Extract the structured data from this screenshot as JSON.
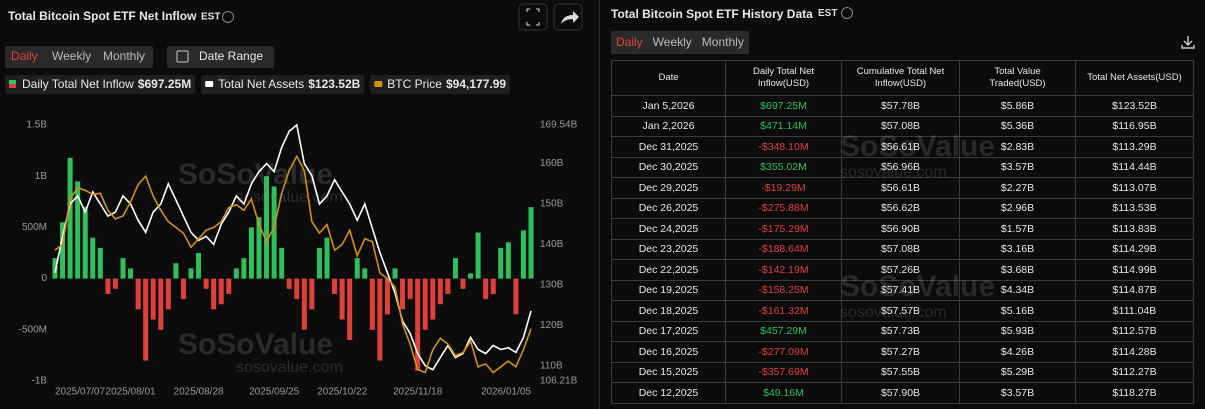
{
  "chart_data": {
    "type": "bar",
    "title": "Total Bitcoin Spot ETF Net Inflow",
    "timezone": "EST",
    "tabs": [
      "Daily",
      "Weekly",
      "Monthly"
    ],
    "date_range": "Date Range",
    "watermark": {
      "brand": "SoSoValue",
      "site": "sosovalue.com"
    },
    "categories": [
      "2025/07/07",
      null,
      null,
      null,
      null,
      null,
      null,
      null,
      null,
      null,
      "2025/08/01",
      null,
      null,
      null,
      null,
      null,
      null,
      null,
      null,
      "2025/08/28",
      null,
      null,
      null,
      null,
      null,
      null,
      null,
      null,
      null,
      "2025/09/25",
      null,
      null,
      null,
      null,
      null,
      null,
      null,
      null,
      "2025/10/22",
      null,
      null,
      null,
      null,
      null,
      null,
      null,
      null,
      null,
      "2025/11/18",
      null,
      null,
      null,
      null,
      null,
      null,
      null,
      null,
      null,
      null,
      null,
      null,
      null,
      null,
      "2026/01/05"
    ],
    "series": [
      {
        "name": "Daily Total Net Inflow",
        "type": "bar",
        "color": "#2fbf5b",
        "negative_color": "#e0403a",
        "value_label": "$697.25M",
        "values": [
          200,
          550,
          1180,
          950,
          700,
          400,
          300,
          -150,
          -100,
          200,
          100,
          -300,
          -800,
          -400,
          -500,
          -300,
          150,
          -200,
          100,
          250,
          -100,
          -300,
          -250,
          -150,
          100,
          200,
          500,
          600,
          1000,
          900,
          300,
          -100,
          -200,
          -500,
          -300,
          300,
          400,
          -150,
          -400,
          -600,
          200,
          100,
          -500,
          -800,
          -350,
          100,
          -300,
          -200,
          -900,
          -500,
          -400,
          -250,
          -150,
          200,
          -100,
          50,
          450,
          -200,
          -150,
          300,
          355.02,
          -348.1,
          471.14,
          697.25
        ]
      },
      {
        "name": "Total Net Assets",
        "type": "line",
        "color": "#ffffff",
        "axis": "y2",
        "value_label": "$123.52B",
        "values": [
          133,
          142,
          150,
          152,
          148,
          153,
          150,
          147,
          148,
          152,
          150,
          146,
          143,
          148,
          150,
          155,
          151,
          147,
          143,
          141,
          142,
          140,
          145,
          148,
          152,
          150,
          155,
          158,
          160,
          158,
          164,
          168,
          169.54,
          160,
          157,
          150,
          152,
          156,
          153,
          150,
          146,
          150,
          144,
          138,
          133,
          128,
          121,
          118,
          113,
          110,
          109,
          112,
          115,
          112,
          113,
          117,
          114,
          113,
          115,
          114,
          114.44,
          113.29,
          116.95,
          123.52
        ]
      },
      {
        "name": "BTC Price",
        "type": "line",
        "color": "#d4900f",
        "axis": "y3",
        "value_label": "$94,177.99",
        "values": [
          108000,
          109000,
          117000,
          119000,
          118500,
          117800,
          118000,
          115000,
          113500,
          114000,
          116500,
          119500,
          121000,
          117500,
          115000,
          113000,
          112000,
          111000,
          108500,
          110000,
          111500,
          112000,
          113000,
          115500,
          116000,
          115000,
          117000,
          112500,
          109500,
          112000,
          118000,
          122000,
          124500,
          122000,
          113000,
          111000,
          112500,
          108000,
          109000,
          111500,
          107000,
          110000,
          109500,
          104000,
          103000,
          101500,
          95000,
          91500,
          87000,
          86500,
          90500,
          92500,
          91500,
          89500,
          90000,
          92000,
          87500,
          88000,
          86500,
          87500,
          88500,
          87500,
          90500,
          94177.99
        ]
      }
    ],
    "ylim": [
      -1000,
      1500
    ],
    "yticks": [
      {
        "value": 1500,
        "label": "1.5B"
      },
      {
        "value": 1000,
        "label": "1B"
      },
      {
        "value": 500,
        "label": "500M"
      },
      0,
      {
        "value": -500,
        "label": "-500M"
      },
      {
        "value": -1000,
        "label": "-1B"
      }
    ],
    "y2lim": [
      106.21,
      169.54
    ],
    "y2ticks": [
      {
        "value": 169.54,
        "label": "169.54B"
      },
      {
        "value": 160,
        "label": "160B"
      },
      {
        "value": 150,
        "label": "150B"
      },
      {
        "value": 140,
        "label": "140B"
      },
      {
        "value": 130,
        "label": "130B"
      },
      {
        "value": 120,
        "label": "120B"
      },
      {
        "value": 110,
        "label": "110B"
      },
      {
        "value": 106.21,
        "label": "106.21B"
      }
    ],
    "y3lim": [
      85000,
      130000
    ],
    "grid": false
  },
  "table_panel": {
    "title": "Total Bitcoin Spot ETF History Data",
    "timezone": "EST",
    "tabs": [
      "Daily",
      "Weekly",
      "Monthly"
    ],
    "columns": [
      "Date",
      "Daily Total Net Inflow(USD)",
      "Cumulative Total Net Inflow(USD)",
      "Total Value Traded(USD)",
      "Total Net Assets(USD)"
    ],
    "rows": [
      [
        "Jan 5,2026",
        "$697.25M",
        "$57.78B",
        "$5.86B",
        "$123.52B"
      ],
      [
        "Jan 2,2026",
        "$471.14M",
        "$57.08B",
        "$5.36B",
        "$116.95B"
      ],
      [
        "Dec 31,2025",
        "-$348.10M",
        "$56.61B",
        "$2.83B",
        "$113.29B"
      ],
      [
        "Dec 30,2025",
        "$355.02M",
        "$56.96B",
        "$3.57B",
        "$114.44B"
      ],
      [
        "Dec 29,2025",
        "-$19.29M",
        "$56.61B",
        "$2.27B",
        "$113.07B"
      ],
      [
        "Dec 26,2025",
        "-$275.88M",
        "$56.62B",
        "$2.96B",
        "$113.53B"
      ],
      [
        "Dec 24,2025",
        "-$175.29M",
        "$56.90B",
        "$1.57B",
        "$113.83B"
      ],
      [
        "Dec 23,2025",
        "-$188.64M",
        "$57.08B",
        "$3.16B",
        "$114.29B"
      ],
      [
        "Dec 22,2025",
        "-$142.19M",
        "$57.26B",
        "$3.68B",
        "$114.99B"
      ],
      [
        "Dec 19,2025",
        "-$158.25M",
        "$57.41B",
        "$4.34B",
        "$114.87B"
      ],
      [
        "Dec 18,2025",
        "-$161.32M",
        "$57.57B",
        "$5.16B",
        "$111.04B"
      ],
      [
        "Dec 17,2025",
        "$457.29M",
        "$57.73B",
        "$5.93B",
        "$112.57B"
      ],
      [
        "Dec 16,2025",
        "-$277.09M",
        "$57.27B",
        "$4.26B",
        "$114.28B"
      ],
      [
        "Dec 15,2025",
        "-$357.69M",
        "$57.55B",
        "$5.29B",
        "$112.27B"
      ],
      [
        "Dec 12,2025",
        "$49.16M",
        "$57.90B",
        "$3.57B",
        "$118.27B"
      ]
    ]
  }
}
